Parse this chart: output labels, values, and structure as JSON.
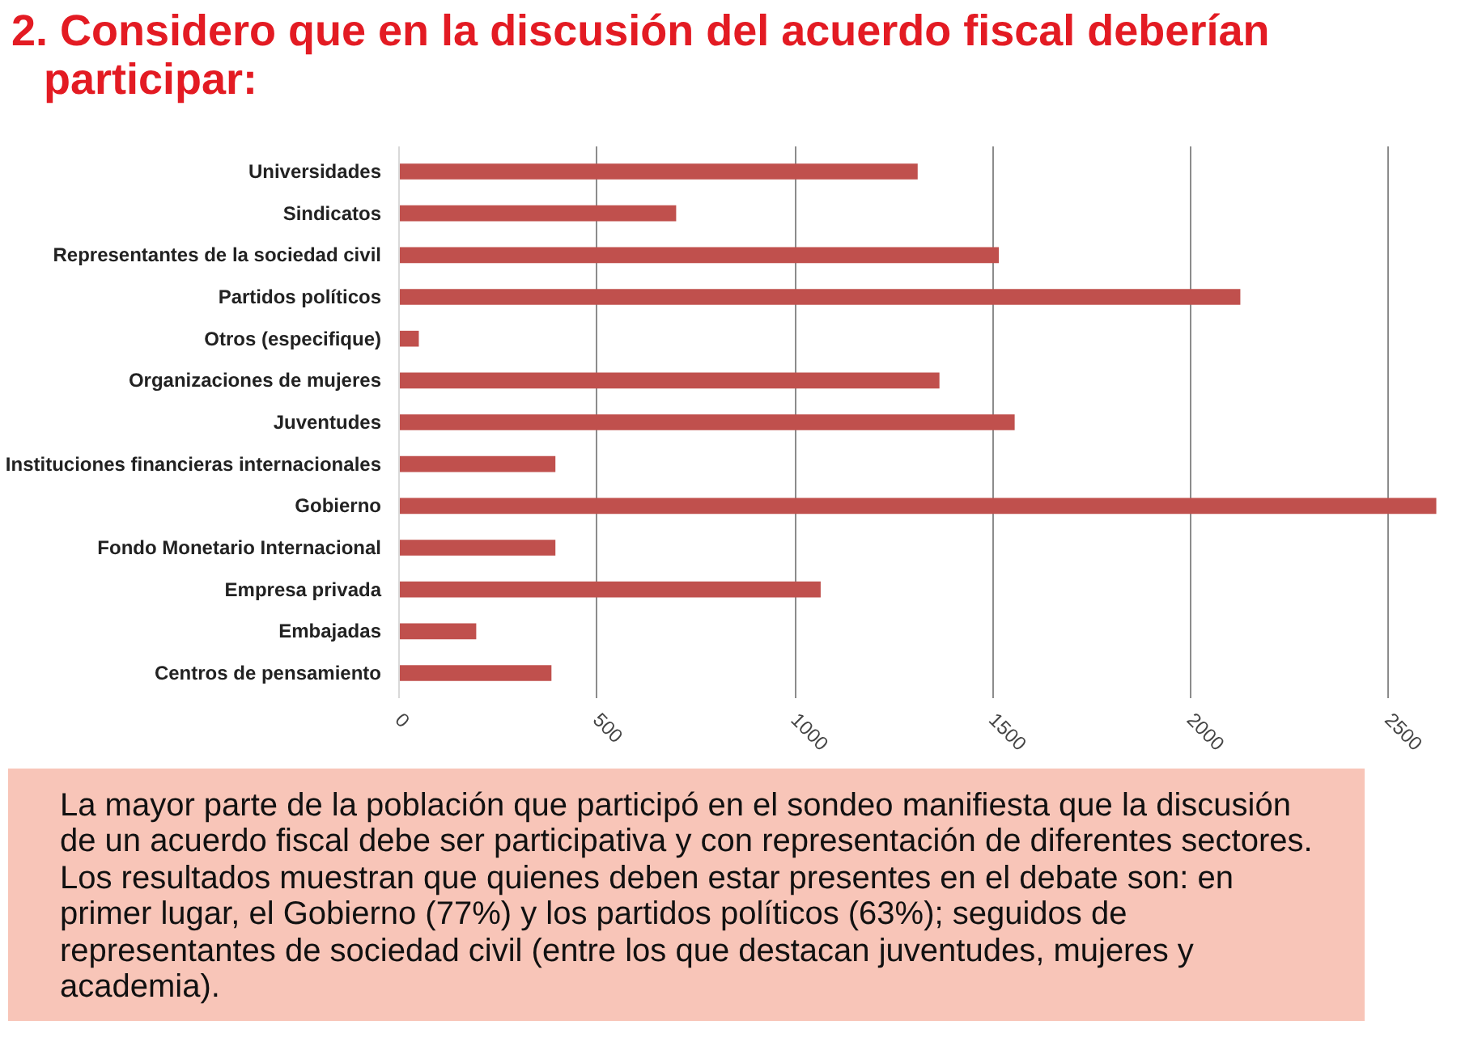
{
  "chart_data": {
    "type": "bar",
    "orientation": "horizontal",
    "title": "2. Considero que en la discusión del acuerdo fiscal deberían participar:",
    "categories": [
      "Universidades",
      "Sindicatos",
      "Representantes de la sociedad civil",
      "Partidos políticos",
      "Otros (especifique)",
      "Organizaciones de mujeres",
      "Juventudes",
      "Instituciones financieras internacionales",
      "Gobierno",
      "Fondo Monetario Internacional",
      "Empresa privada",
      "Embajadas",
      "Centros de pensamiento"
    ],
    "values": [
      1310,
      700,
      1515,
      2125,
      50,
      1365,
      1555,
      395,
      2620,
      395,
      1065,
      195,
      385
    ],
    "color": "#c0504d",
    "xlim": [
      0,
      2625
    ],
    "xticks": [
      0,
      500,
      1000,
      1500,
      2000,
      2500
    ],
    "grid": "x",
    "annotations": [
      "La mayor parte de la población que participó en el sondeo manifiesta que la discusión de un acuerdo fiscal debe ser participativa y  con representación de diferentes sectores.",
      "Los resultados muestran que quienes deben estar presentes en el debate son: en primer lugar, el Gobierno (77%) y los partidos políticos (63%); seguidos de representantes de sociedad civil (entre los que destacan juventudes, mujeres y academia)."
    ]
  }
}
